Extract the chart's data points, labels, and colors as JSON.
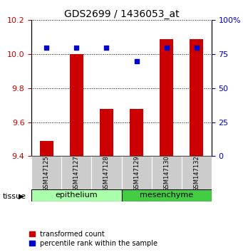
{
  "title": "GDS2699 / 1436053_at",
  "samples": [
    "GSM147125",
    "GSM147127",
    "GSM147128",
    "GSM147129",
    "GSM147130",
    "GSM147132"
  ],
  "red_values": [
    9.49,
    10.0,
    9.68,
    9.68,
    10.09,
    10.09
  ],
  "blue_values": [
    80,
    80,
    80,
    70,
    80,
    80
  ],
  "ylim_left": [
    9.4,
    10.2
  ],
  "ylim_right": [
    0,
    100
  ],
  "yticks_left": [
    9.4,
    9.6,
    9.8,
    10.0,
    10.2
  ],
  "yticks_right": [
    0,
    25,
    50,
    75,
    100
  ],
  "ytick_right_labels": [
    "0",
    "25",
    "50",
    "75",
    "100%"
  ],
  "tissue_groups": [
    {
      "label": "epithelium",
      "color": "#aaffaa",
      "start": 0,
      "end": 3
    },
    {
      "label": "mesenchyme",
      "color": "#44cc44",
      "start": 3,
      "end": 6
    }
  ],
  "red_color": "#cc0000",
  "blue_color": "#0000cc",
  "bar_width": 0.45,
  "legend_red": "transformed count",
  "legend_blue": "percentile rank within the sample",
  "left_tick_color": "#cc0000",
  "right_tick_color": "#0000cc",
  "sample_box_color": "#cccccc",
  "tissue_label_text": "tissue"
}
